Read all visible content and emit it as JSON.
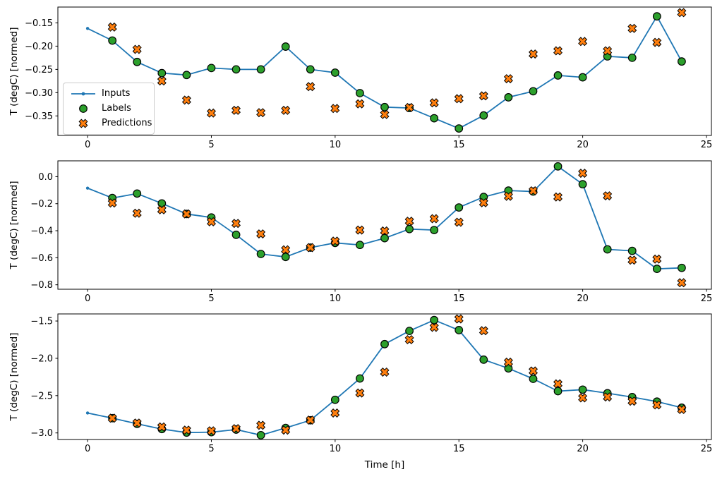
{
  "figure": {
    "xlabel": "Time [h]",
    "ylabel": "T (degC) [normed]",
    "background": "#ffffff",
    "colors": {
      "inputs": "#1f77b4",
      "labels": "#2ca02c",
      "predictions": "#ff7f0e",
      "marker_edge": "#000000",
      "axis": "#000000",
      "text": "#000000",
      "legend_border": "#cccccc"
    },
    "legend": {
      "location": "center-left of top panel",
      "items": [
        "Inputs",
        "Labels",
        "Predictions"
      ]
    }
  },
  "chart_data": [
    {
      "type": "line",
      "panel": "top",
      "ylabel": "T (degC) [normed]",
      "grid": false,
      "xlim": [
        -1.2,
        25.2
      ],
      "ylim": [
        -0.392,
        -0.116
      ],
      "xticks": [
        0,
        5,
        10,
        15,
        20,
        25
      ],
      "xtick_labels": [
        "0",
        "5",
        "10",
        "15",
        "20",
        "25"
      ],
      "yticks": [
        -0.15,
        -0.2,
        -0.25,
        -0.3,
        -0.35
      ],
      "ytick_labels": [
        "−0.15",
        "−0.20",
        "−0.25",
        "−0.30",
        "−0.35"
      ],
      "series": [
        {
          "name": "Inputs",
          "style": "line-with-dots",
          "x": [
            0,
            1,
            2,
            3,
            4,
            5,
            6,
            7,
            8,
            9,
            10,
            11,
            12,
            13,
            14,
            15,
            16,
            17,
            18,
            19,
            20,
            21,
            22,
            23,
            24
          ],
          "values": [
            -0.162,
            -0.188,
            -0.234,
            -0.258,
            -0.262,
            -0.247,
            -0.25,
            -0.25,
            -0.201,
            -0.25,
            -0.257,
            -0.301,
            -0.331,
            -0.333,
            -0.355,
            -0.377,
            -0.349,
            -0.31,
            -0.297,
            -0.263,
            -0.267,
            -0.222,
            -0.225,
            -0.136,
            -0.233
          ]
        },
        {
          "name": "Labels",
          "style": "circle-markers",
          "x": [
            1,
            2,
            3,
            4,
            5,
            6,
            7,
            8,
            9,
            10,
            11,
            12,
            13,
            14,
            15,
            16,
            17,
            18,
            19,
            20,
            21,
            22,
            23,
            24
          ],
          "values": [
            -0.188,
            -0.234,
            -0.258,
            -0.262,
            -0.247,
            -0.25,
            -0.25,
            -0.201,
            -0.25,
            -0.257,
            -0.301,
            -0.331,
            -0.333,
            -0.355,
            -0.377,
            -0.349,
            -0.31,
            -0.297,
            -0.263,
            -0.267,
            -0.222,
            -0.225,
            -0.136,
            -0.233
          ]
        },
        {
          "name": "Predictions",
          "style": "x-markers",
          "x": [
            1,
            2,
            3,
            4,
            5,
            6,
            7,
            8,
            9,
            10,
            11,
            12,
            13,
            14,
            15,
            16,
            17,
            18,
            19,
            20,
            21,
            22,
            23,
            24
          ],
          "values": [
            -0.159,
            -0.207,
            -0.275,
            -0.316,
            -0.344,
            -0.338,
            -0.343,
            -0.338,
            -0.287,
            -0.334,
            -0.324,
            -0.347,
            -0.332,
            -0.322,
            -0.313,
            -0.307,
            -0.27,
            -0.217,
            -0.21,
            -0.19,
            -0.21,
            -0.162,
            -0.192,
            -0.128
          ]
        }
      ]
    },
    {
      "type": "line",
      "panel": "middle",
      "ylabel": "T (degC) [normed]",
      "grid": false,
      "xlim": [
        -1.2,
        25.2
      ],
      "ylim": [
        -0.833,
        0.117
      ],
      "xticks": [
        0,
        5,
        10,
        15,
        20,
        25
      ],
      "xtick_labels": [
        "0",
        "5",
        "10",
        "15",
        "20",
        "25"
      ],
      "yticks": [
        0.0,
        -0.2,
        -0.4,
        -0.6,
        -0.8
      ],
      "ytick_labels": [
        "0.0",
        "−0.2",
        "−0.4",
        "−0.6",
        "−0.8"
      ],
      "series": [
        {
          "name": "Inputs",
          "style": "line-with-dots",
          "x": [
            0,
            1,
            2,
            3,
            4,
            5,
            6,
            7,
            8,
            9,
            10,
            11,
            12,
            13,
            14,
            15,
            16,
            17,
            18,
            19,
            20,
            21,
            22,
            23,
            24
          ],
          "values": [
            -0.085,
            -0.158,
            -0.125,
            -0.198,
            -0.276,
            -0.302,
            -0.43,
            -0.572,
            -0.594,
            -0.525,
            -0.49,
            -0.505,
            -0.455,
            -0.388,
            -0.395,
            -0.228,
            -0.15,
            -0.103,
            -0.11,
            0.076,
            -0.056,
            -0.538,
            -0.549,
            -0.682,
            -0.675
          ]
        },
        {
          "name": "Labels",
          "style": "circle-markers",
          "x": [
            1,
            2,
            3,
            4,
            5,
            6,
            7,
            8,
            9,
            10,
            11,
            12,
            13,
            14,
            15,
            16,
            17,
            18,
            19,
            20,
            21,
            22,
            23,
            24
          ],
          "values": [
            -0.158,
            -0.125,
            -0.198,
            -0.276,
            -0.302,
            -0.43,
            -0.572,
            -0.594,
            -0.525,
            -0.49,
            -0.505,
            -0.455,
            -0.388,
            -0.395,
            -0.228,
            -0.15,
            -0.103,
            -0.11,
            0.076,
            -0.056,
            -0.538,
            -0.549,
            -0.682,
            -0.675
          ]
        },
        {
          "name": "Predictions",
          "style": "x-markers",
          "x": [
            1,
            2,
            3,
            4,
            5,
            6,
            7,
            8,
            9,
            10,
            11,
            12,
            13,
            14,
            15,
            16,
            17,
            18,
            19,
            20,
            21,
            22,
            23,
            24
          ],
          "values": [
            -0.195,
            -0.271,
            -0.245,
            -0.276,
            -0.334,
            -0.346,
            -0.424,
            -0.541,
            -0.525,
            -0.477,
            -0.395,
            -0.402,
            -0.33,
            -0.311,
            -0.337,
            -0.193,
            -0.145,
            -0.105,
            -0.15,
            0.025,
            -0.142,
            -0.618,
            -0.61,
            -0.785
          ]
        }
      ]
    },
    {
      "type": "line",
      "panel": "bottom",
      "ylabel": "T (degC) [normed]",
      "xlabel": "Time [h]",
      "grid": false,
      "xlim": [
        -1.2,
        25.2
      ],
      "ylim": [
        -3.088,
        -1.405
      ],
      "xticks": [
        0,
        5,
        10,
        15,
        20,
        25
      ],
      "xtick_labels": [
        "0",
        "5",
        "10",
        "15",
        "20",
        "25"
      ],
      "yticks": [
        -1.5,
        -2.0,
        -2.5,
        -3.0
      ],
      "ytick_labels": [
        "−1.5",
        "−2.0",
        "−2.5",
        "−3.0"
      ],
      "series": [
        {
          "name": "Inputs",
          "style": "line-with-dots",
          "x": [
            0,
            1,
            2,
            3,
            4,
            5,
            6,
            7,
            8,
            9,
            10,
            11,
            12,
            13,
            14,
            15,
            16,
            17,
            18,
            19,
            20,
            21,
            22,
            23,
            24
          ],
          "values": [
            -2.733,
            -2.802,
            -2.878,
            -2.948,
            -2.995,
            -2.99,
            -2.955,
            -3.03,
            -2.933,
            -2.83,
            -2.556,
            -2.27,
            -1.81,
            -1.633,
            -1.487,
            -1.622,
            -2.018,
            -2.135,
            -2.275,
            -2.44,
            -2.42,
            -2.468,
            -2.52,
            -2.58,
            -2.662
          ]
        },
        {
          "name": "Labels",
          "style": "circle-markers",
          "x": [
            1,
            2,
            3,
            4,
            5,
            6,
            7,
            8,
            9,
            10,
            11,
            12,
            13,
            14,
            15,
            16,
            17,
            18,
            19,
            20,
            21,
            22,
            23,
            24
          ],
          "values": [
            -2.802,
            -2.878,
            -2.948,
            -2.995,
            -2.99,
            -2.955,
            -3.03,
            -2.933,
            -2.83,
            -2.556,
            -2.27,
            -1.81,
            -1.633,
            -1.487,
            -1.622,
            -2.018,
            -2.135,
            -2.275,
            -2.44,
            -2.42,
            -2.468,
            -2.52,
            -2.58,
            -2.662
          ]
        },
        {
          "name": "Predictions",
          "style": "x-markers",
          "x": [
            1,
            2,
            3,
            4,
            5,
            6,
            7,
            8,
            9,
            10,
            11,
            12,
            13,
            14,
            15,
            16,
            17,
            18,
            19,
            20,
            21,
            22,
            23,
            24
          ],
          "values": [
            -2.802,
            -2.868,
            -2.92,
            -2.962,
            -2.972,
            -2.942,
            -2.898,
            -2.962,
            -2.828,
            -2.733,
            -2.465,
            -2.185,
            -1.75,
            -1.585,
            -1.472,
            -1.63,
            -2.052,
            -2.17,
            -2.342,
            -2.53,
            -2.518,
            -2.575,
            -2.625,
            -2.685
          ]
        }
      ]
    }
  ]
}
